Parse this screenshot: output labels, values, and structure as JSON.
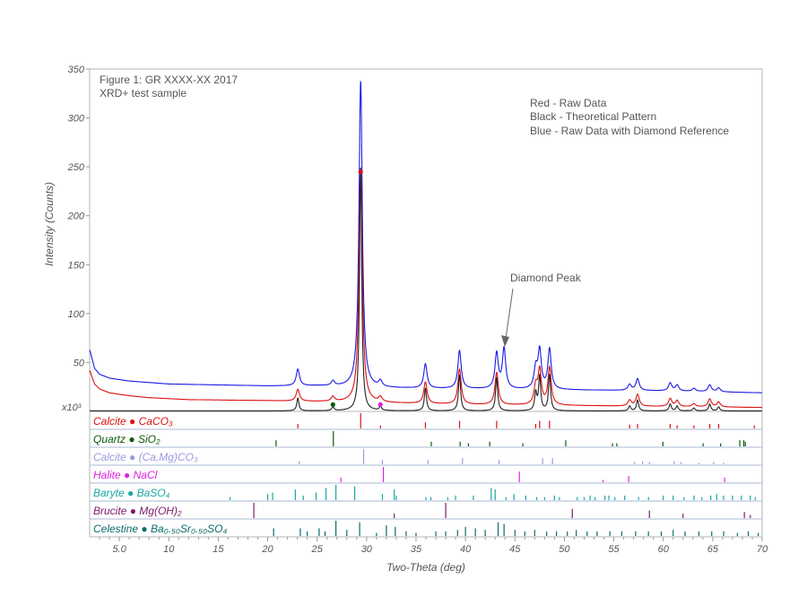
{
  "chart_data": {
    "type": "line",
    "title": "Figure 1:  GR XXXX-XX 2017",
    "subtitle": "XRD+ test sample",
    "xlabel": "Two-Theta (deg)",
    "ylabel": "Intensity (Counts)",
    "yunit": "x10³",
    "xlim": [
      2,
      70
    ],
    "ylim": [
      0,
      350
    ],
    "xticks": [
      "5.0",
      "10",
      "15",
      "20",
      "25",
      "30",
      "35",
      "40",
      "45",
      "50",
      "55",
      "60",
      "65",
      "70"
    ],
    "xtick_values": [
      5,
      10,
      15,
      20,
      25,
      30,
      35,
      40,
      45,
      50,
      55,
      60,
      65,
      70
    ],
    "yticks": [
      "50",
      "100",
      "150",
      "200",
      "250",
      "300",
      "350"
    ],
    "ytick_values": [
      50,
      100,
      150,
      200,
      250,
      300,
      350
    ],
    "legend": {
      "placement": "top-right",
      "lines": [
        "Red - Raw Data",
        "Black - Theoretical Pattern",
        "Blue - Raw Data with Diamond Reference"
      ]
    },
    "annotation": {
      "text": "Diamond Peak",
      "x": 43.9,
      "y": 57
    },
    "series": [
      {
        "name": "Raw Data with Diamond Reference",
        "color": "#1a1ae6",
        "baseline": 19,
        "width": 0.2,
        "points": [
          [
            2,
            63
          ],
          [
            2.5,
            44
          ],
          [
            3,
            38
          ],
          [
            4,
            34
          ],
          [
            6,
            31
          ],
          [
            10,
            28
          ],
          [
            15,
            27
          ],
          [
            20,
            26
          ],
          [
            25,
            26
          ],
          [
            30,
            24
          ],
          [
            40,
            23
          ],
          [
            50,
            22
          ],
          [
            60,
            21
          ],
          [
            70,
            19
          ]
        ],
        "peaks": [
          [
            23.05,
            17
          ],
          [
            26.6,
            5
          ],
          [
            29.4,
            314
          ],
          [
            31.4,
            6
          ],
          [
            35.95,
            25
          ],
          [
            39.4,
            39
          ],
          [
            43.15,
            36
          ],
          [
            43.9,
            41
          ],
          [
            47.1,
            20
          ],
          [
            47.5,
            39
          ],
          [
            48.5,
            41
          ],
          [
            56.6,
            6
          ],
          [
            57.4,
            12
          ],
          [
            60.7,
            8
          ],
          [
            61.4,
            6
          ],
          [
            63.1,
            3
          ],
          [
            64.7,
            7
          ],
          [
            65.6,
            4
          ]
        ]
      },
      {
        "name": "Raw Data",
        "color": "#dd1111",
        "baseline": 5,
        "width": 0.2,
        "points": [
          [
            2,
            42
          ],
          [
            2.5,
            28
          ],
          [
            3,
            23
          ],
          [
            4,
            19
          ],
          [
            6,
            16
          ],
          [
            8,
            14
          ],
          [
            12,
            12
          ],
          [
            20,
            11
          ],
          [
            25,
            10
          ],
          [
            30,
            9
          ],
          [
            40,
            7
          ],
          [
            50,
            6
          ],
          [
            60,
            5
          ],
          [
            70,
            4
          ]
        ],
        "peaks": [
          [
            23.05,
            12
          ],
          [
            26.6,
            5
          ],
          [
            29.4,
            240
          ],
          [
            31.4,
            5
          ],
          [
            35.95,
            22
          ],
          [
            39.4,
            36
          ],
          [
            43.15,
            33
          ],
          [
            47.1,
            18
          ],
          [
            47.5,
            35
          ],
          [
            48.5,
            38
          ],
          [
            56.6,
            6
          ],
          [
            57.4,
            12
          ],
          [
            60.7,
            8
          ],
          [
            61.4,
            6
          ],
          [
            63.1,
            3
          ],
          [
            64.7,
            8
          ],
          [
            65.6,
            5
          ]
        ]
      },
      {
        "name": "Theoretical Pattern",
        "color": "#222222",
        "baseline": 0,
        "width": 0.13,
        "points": [
          [
            2,
            0.5
          ],
          [
            70,
            0.5
          ]
        ],
        "peaks": [
          [
            23.05,
            13
          ],
          [
            26.6,
            4
          ],
          [
            29.4,
            250
          ],
          [
            31.4,
            4
          ],
          [
            35.95,
            23
          ],
          [
            39.4,
            37
          ],
          [
            43.15,
            34
          ],
          [
            47.1,
            18
          ],
          [
            47.5,
            35
          ],
          [
            48.5,
            37
          ],
          [
            56.6,
            5
          ],
          [
            57.4,
            11
          ],
          [
            60.7,
            7
          ],
          [
            61.4,
            5
          ],
          [
            63.1,
            3
          ],
          [
            64.7,
            7
          ],
          [
            65.6,
            4
          ]
        ]
      }
    ],
    "markers": [
      {
        "x": 29.4,
        "y": 245,
        "color": "#dd1111"
      },
      {
        "x": 26.6,
        "y": 7,
        "color": "#0a5a0a"
      },
      {
        "x": 31.4,
        "y": 7,
        "color": "#e020e0"
      }
    ],
    "phases": [
      {
        "name": "Calcite",
        "formula": "CaCO₃",
        "color": "#dd1111",
        "sticks": [
          [
            23.05,
            0.3
          ],
          [
            29.4,
            1.0
          ],
          [
            31.4,
            0.2
          ],
          [
            35.95,
            0.4
          ],
          [
            39.4,
            0.5
          ],
          [
            43.15,
            0.5
          ],
          [
            47.1,
            0.3
          ],
          [
            47.5,
            0.5
          ],
          [
            48.5,
            0.5
          ],
          [
            56.6,
            0.25
          ],
          [
            57.4,
            0.3
          ],
          [
            60.7,
            0.3
          ],
          [
            61.4,
            0.2
          ],
          [
            63.1,
            0.2
          ],
          [
            64.7,
            0.3
          ],
          [
            65.6,
            0.3
          ],
          [
            69.2,
            0.2
          ]
        ]
      },
      {
        "name": "Quartz",
        "formula": "SiO₂",
        "color": "#0a5a0a",
        "sticks": [
          [
            20.85,
            0.4
          ],
          [
            26.64,
            1.0
          ],
          [
            36.54,
            0.3
          ],
          [
            39.46,
            0.3
          ],
          [
            40.3,
            0.2
          ],
          [
            42.45,
            0.3
          ],
          [
            45.8,
            0.2
          ],
          [
            50.14,
            0.4
          ],
          [
            54.87,
            0.2
          ],
          [
            55.3,
            0.2
          ],
          [
            59.96,
            0.3
          ],
          [
            64.03,
            0.2
          ],
          [
            65.8,
            0.2
          ],
          [
            67.74,
            0.4
          ],
          [
            68.14,
            0.4
          ],
          [
            68.3,
            0.3
          ]
        ]
      },
      {
        "name": "Calcite",
        "formula": "(Ca,Mg)CO₃",
        "color": "#9a9ae0",
        "sticks": [
          [
            23.2,
            0.2
          ],
          [
            29.7,
            1.0
          ],
          [
            31.6,
            0.3
          ],
          [
            36.2,
            0.3
          ],
          [
            39.7,
            0.4
          ],
          [
            43.4,
            0.3
          ],
          [
            47.8,
            0.4
          ],
          [
            48.8,
            0.4
          ],
          [
            57.1,
            0.15
          ],
          [
            57.9,
            0.2
          ],
          [
            58.6,
            0.15
          ],
          [
            61.1,
            0.2
          ],
          [
            61.8,
            0.15
          ],
          [
            63.6,
            0.1
          ],
          [
            65.1,
            0.15
          ],
          [
            66.1,
            0.1
          ]
        ]
      },
      {
        "name": "Halite",
        "formula": "NaCl",
        "color": "#e020e0",
        "sticks": [
          [
            27.4,
            0.3
          ],
          [
            31.7,
            1.0
          ],
          [
            45.45,
            0.7
          ],
          [
            53.9,
            0.15
          ],
          [
            56.5,
            0.4
          ],
          [
            66.2,
            0.3
          ]
        ]
      },
      {
        "name": "Baryte",
        "formula": "BaSO₄",
        "color": "#1aa5a5",
        "sticks": [
          [
            16.2,
            0.2
          ],
          [
            20.0,
            0.4
          ],
          [
            20.5,
            0.5
          ],
          [
            22.8,
            0.7
          ],
          [
            23.6,
            0.3
          ],
          [
            24.9,
            0.5
          ],
          [
            25.9,
            0.8
          ],
          [
            26.9,
            1.0
          ],
          [
            28.8,
            0.9
          ],
          [
            31.6,
            0.4
          ],
          [
            32.8,
            0.7
          ],
          [
            33.0,
            0.3
          ],
          [
            36.0,
            0.2
          ],
          [
            36.5,
            0.2
          ],
          [
            38.2,
            0.2
          ],
          [
            39.0,
            0.3
          ],
          [
            40.8,
            0.3
          ],
          [
            42.6,
            0.8
          ],
          [
            43.0,
            0.7
          ],
          [
            44.1,
            0.2
          ],
          [
            44.9,
            0.4
          ],
          [
            46.1,
            0.3
          ],
          [
            47.2,
            0.2
          ],
          [
            48.0,
            0.2
          ],
          [
            49.0,
            0.3
          ],
          [
            49.5,
            0.2
          ],
          [
            51.3,
            0.2
          ],
          [
            52.0,
            0.2
          ],
          [
            52.6,
            0.3
          ],
          [
            53.1,
            0.2
          ],
          [
            54.1,
            0.3
          ],
          [
            54.5,
            0.3
          ],
          [
            55.1,
            0.2
          ],
          [
            56.1,
            0.3
          ],
          [
            57.5,
            0.2
          ],
          [
            58.5,
            0.2
          ],
          [
            60.0,
            0.3
          ],
          [
            61.0,
            0.3
          ],
          [
            62.1,
            0.2
          ],
          [
            63.1,
            0.3
          ],
          [
            63.9,
            0.2
          ],
          [
            64.8,
            0.3
          ],
          [
            65.4,
            0.4
          ],
          [
            66.1,
            0.3
          ],
          [
            67.0,
            0.3
          ],
          [
            67.9,
            0.3
          ],
          [
            68.8,
            0.3
          ],
          [
            69.3,
            0.2
          ]
        ]
      },
      {
        "name": "Brucite",
        "formula": "Mg(OH)₂",
        "color": "#7a1a6a",
        "sticks": [
          [
            18.6,
            1.0
          ],
          [
            32.8,
            0.3
          ],
          [
            38.0,
            1.0
          ],
          [
            50.8,
            0.6
          ],
          [
            58.6,
            0.5
          ],
          [
            62.0,
            0.3
          ],
          [
            68.2,
            0.4
          ],
          [
            68.8,
            0.2
          ]
        ]
      },
      {
        "name": "Celestine",
        "formula": "Ba₀.₅₀Sr₀.₅₀SO₄",
        "color": "#0a6a6a",
        "sticks": [
          [
            20.6,
            0.5
          ],
          [
            23.3,
            0.5
          ],
          [
            24.0,
            0.3
          ],
          [
            25.2,
            0.5
          ],
          [
            25.8,
            0.3
          ],
          [
            26.9,
            1.0
          ],
          [
            28.0,
            0.4
          ],
          [
            29.3,
            0.9
          ],
          [
            31.0,
            0.2
          ],
          [
            32.0,
            0.7
          ],
          [
            32.9,
            0.6
          ],
          [
            34.0,
            0.3
          ],
          [
            35.0,
            0.2
          ],
          [
            37.0,
            0.3
          ],
          [
            38.0,
            0.3
          ],
          [
            39.2,
            0.4
          ],
          [
            40.0,
            0.6
          ],
          [
            41.0,
            0.5
          ],
          [
            42.0,
            0.4
          ],
          [
            43.3,
            0.9
          ],
          [
            43.9,
            0.8
          ],
          [
            45.0,
            0.4
          ],
          [
            46.0,
            0.3
          ],
          [
            47.0,
            0.4
          ],
          [
            48.2,
            0.3
          ],
          [
            49.2,
            0.3
          ],
          [
            50.3,
            0.3
          ],
          [
            51.2,
            0.4
          ],
          [
            52.3,
            0.3
          ],
          [
            53.3,
            0.3
          ],
          [
            54.6,
            0.3
          ],
          [
            55.8,
            0.3
          ],
          [
            57.2,
            0.3
          ],
          [
            58.5,
            0.3
          ],
          [
            59.8,
            0.3
          ],
          [
            61.0,
            0.4
          ],
          [
            62.2,
            0.3
          ],
          [
            63.6,
            0.3
          ],
          [
            64.9,
            0.3
          ],
          [
            66.1,
            0.3
          ],
          [
            67.5,
            0.2
          ],
          [
            68.6,
            0.3
          ],
          [
            69.6,
            0.2
          ]
        ]
      }
    ]
  }
}
